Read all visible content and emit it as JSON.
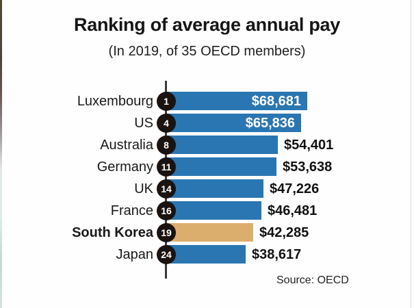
{
  "chart_data": {
    "type": "bar",
    "orientation": "horizontal",
    "title": "Ranking of average annual pay",
    "subtitle": "(In 2019, of 35 OECD members)",
    "source": "Source: OECD",
    "categories": [
      "Luxembourg",
      "US",
      "Australia",
      "Germany",
      "UK",
      "France",
      "South Korea",
      "Japan"
    ],
    "ranks": [
      1,
      4,
      8,
      11,
      14,
      16,
      19,
      24
    ],
    "values": [
      68681,
      65836,
      54401,
      53638,
      47226,
      46481,
      42285,
      38617
    ],
    "value_labels": [
      "$68,681",
      "$65,836",
      "$54,401",
      "$53,638",
      "$47,226",
      "$46,481",
      "$42,285",
      "$38,617"
    ],
    "value_label_inside": [
      true,
      true,
      false,
      false,
      false,
      false,
      false,
      false
    ],
    "highlighted_category": "South Korea",
    "xlim": [
      0,
      68681
    ],
    "xlabel": "",
    "ylabel": "",
    "grid": false,
    "legend": false,
    "colors": {
      "bar": "#2a76b2",
      "highlight": "#dcae6d",
      "rank_badge": "#1b1310",
      "value_inside_text": "#ffffff",
      "value_outside_text": "#111111",
      "axis_line": "#3a3a3a"
    }
  }
}
